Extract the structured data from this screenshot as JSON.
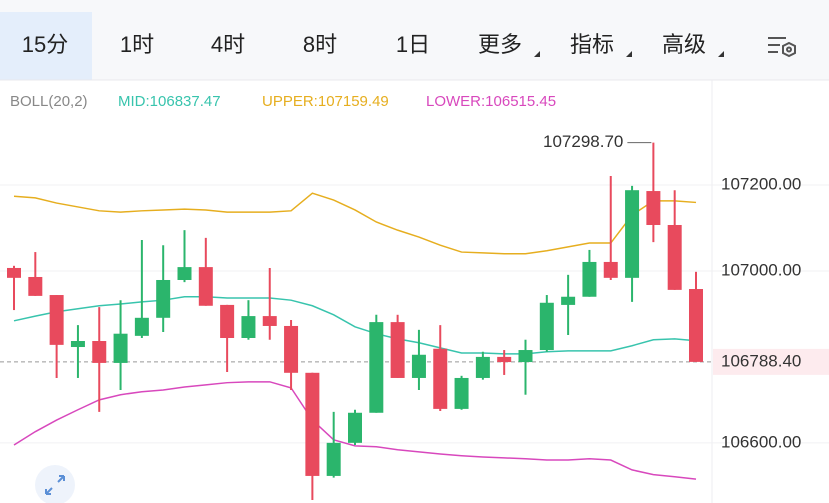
{
  "tabs": [
    "15分",
    "1时",
    "4时",
    "8时",
    "1日",
    "更多",
    "指标",
    "高级"
  ],
  "chart_data": {
    "type": "candlestick",
    "indicator": "BOLL(20,2)",
    "up_color": "#2bb56c",
    "down_color": "#e84a5d",
    "open": [
      107007,
      106986,
      106944,
      106823,
      106837,
      106786,
      106849,
      106891,
      106979,
      107009,
      106921,
      106844,
      106895,
      106872,
      106763,
      106523,
      106600,
      106670,
      106881,
      106751,
      106819,
      106679,
      106751,
      106800,
      106788,
      106816,
      106921,
      106940,
      107021,
      106984,
      107186,
      107107,
      106958
    ],
    "high": [
      107012,
      107044,
      106944,
      106874,
      106916,
      106932,
      107072,
      107060,
      107095,
      107077,
      106921,
      106932,
      107007,
      106886,
      106763,
      106672,
      106677,
      106898,
      106898,
      106863,
      106874,
      106756,
      106812,
      106816,
      106840,
      106944,
      106991,
      107049,
      107221,
      107198,
      107298.7,
      107188,
      106998
    ],
    "low": [
      106909,
      106942,
      106751,
      106751,
      106672,
      106723,
      106844,
      106858,
      106974,
      106919,
      106765,
      106840,
      106840,
      106723,
      106467,
      106519,
      106595,
      106670,
      106751,
      106723,
      106674,
      106677,
      106747,
      106758,
      106712,
      106812,
      106851,
      106940,
      106979,
      106928,
      107067,
      106956,
      106788.4
    ],
    "close": [
      106984,
      106942,
      106828,
      106837,
      106786,
      106854,
      106891,
      106979,
      107009,
      106919,
      106844,
      106895,
      106872,
      106763,
      106523,
      106600,
      106670,
      106881,
      106751,
      106805,
      106679,
      106751,
      106800,
      106788,
      106816,
      106926,
      106940,
      107021,
      106984,
      107188,
      107107,
      106956,
      106788.4
    ],
    "lines": [
      {
        "label": "MID:106837.47",
        "color": "#38c4ad",
        "values": [
          106884,
          106895,
          106905,
          106912,
          106919,
          106923,
          106928,
          106932,
          106940,
          106940,
          106937,
          106937,
          106937,
          106932,
          106919,
          106898,
          106870,
          106854,
          106842,
          106833,
          106821,
          106809,
          106809,
          106807,
          106807,
          106812,
          106814,
          106814,
          106814,
          106826,
          106840,
          106842,
          106837.47
        ]
      },
      {
        "label": "UPPER:107159.49",
        "color": "#e6ae1f",
        "values": [
          107174,
          107170,
          107158,
          107149,
          107140,
          107137,
          107140,
          107142,
          107144,
          107142,
          107137,
          107137,
          107137,
          107140,
          107181,
          107165,
          107142,
          107114,
          107095,
          107079,
          107060,
          107044,
          107042,
          107040,
          107040,
          107047,
          107056,
          107065,
          107065,
          107130,
          107163,
          107163,
          107159.49
        ]
      },
      {
        "label": "LOWER:106515.45",
        "color": "#d848bd",
        "values": [
          106595,
          106626,
          106653,
          106677,
          106700,
          106712,
          106719,
          106723,
          106730,
          106735,
          106740,
          106742,
          106742,
          106728,
          106653,
          106607,
          106593,
          106591,
          106584,
          106579,
          106574,
          106570,
          106567,
          106565,
          106563,
          106560,
          106560,
          106563,
          106560,
          106537,
          106526,
          106521,
          106515.45
        ]
      }
    ],
    "ylim": [
      106460,
      107356
    ],
    "yticks": [
      {
        "value": 107200,
        "label": "107200.00"
      },
      {
        "value": 107000,
        "label": "107000.00"
      },
      {
        "value": 106600,
        "label": "106600.00"
      }
    ],
    "grid": true,
    "last_price": {
      "value": 106788.4,
      "label": "106788.40"
    },
    "high_label": {
      "value": 107298.7,
      "label": "107298.70"
    }
  }
}
